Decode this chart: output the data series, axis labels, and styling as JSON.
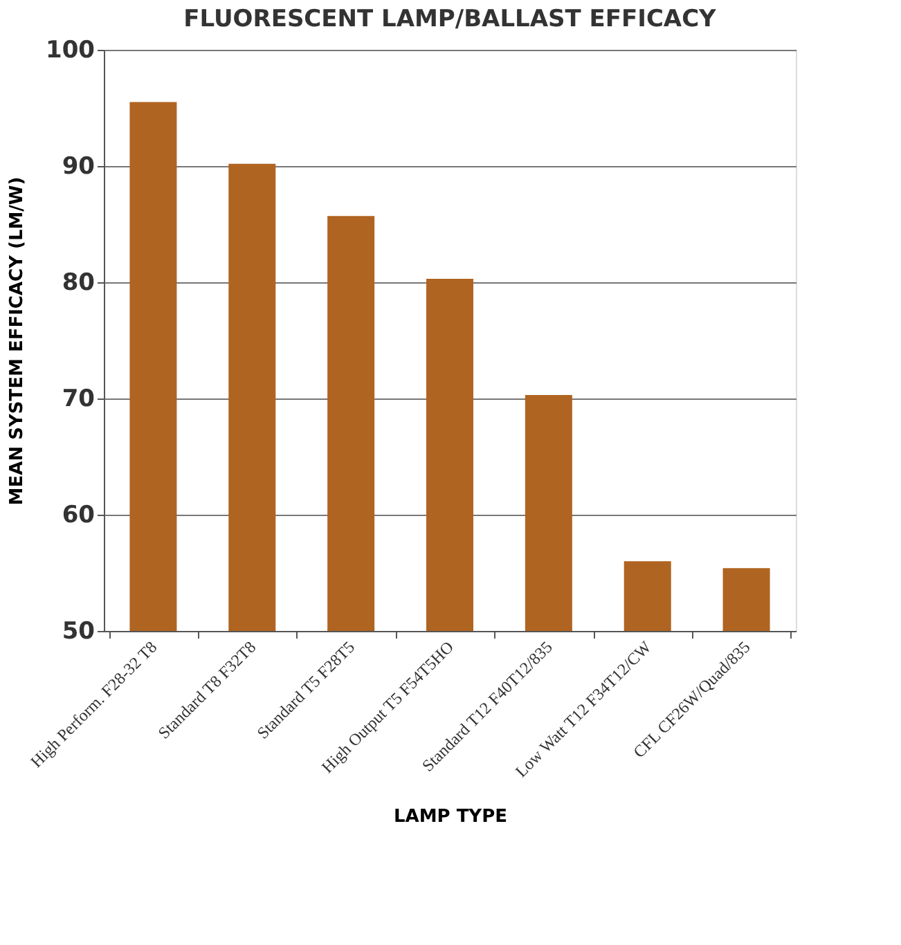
{
  "chart_data": {
    "type": "bar",
    "title": "FLUORESCENT LAMP/BALLAST EFFICACY",
    "xlabel": "LAMP TYPE",
    "ylabel": "MEAN SYSTEM EFFICACY (LM/W)",
    "categories": [
      "High Perform. F28-32 T8",
      "Standard T8 F32T8",
      "Standard T5 F28T5",
      "High Output T5 F54T5HO",
      "Standard T12 F40T12/835",
      "Low Watt T12 F34T12/CW",
      "CFL CF26W/Quad/835"
    ],
    "values": [
      95.5,
      90.2,
      85.7,
      80.3,
      70.3,
      56.0,
      55.4
    ],
    "color": "#b06421",
    "ylim": [
      50,
      100
    ],
    "yticks": [
      50,
      60,
      70,
      80,
      90,
      100
    ],
    "grid": "y"
  }
}
